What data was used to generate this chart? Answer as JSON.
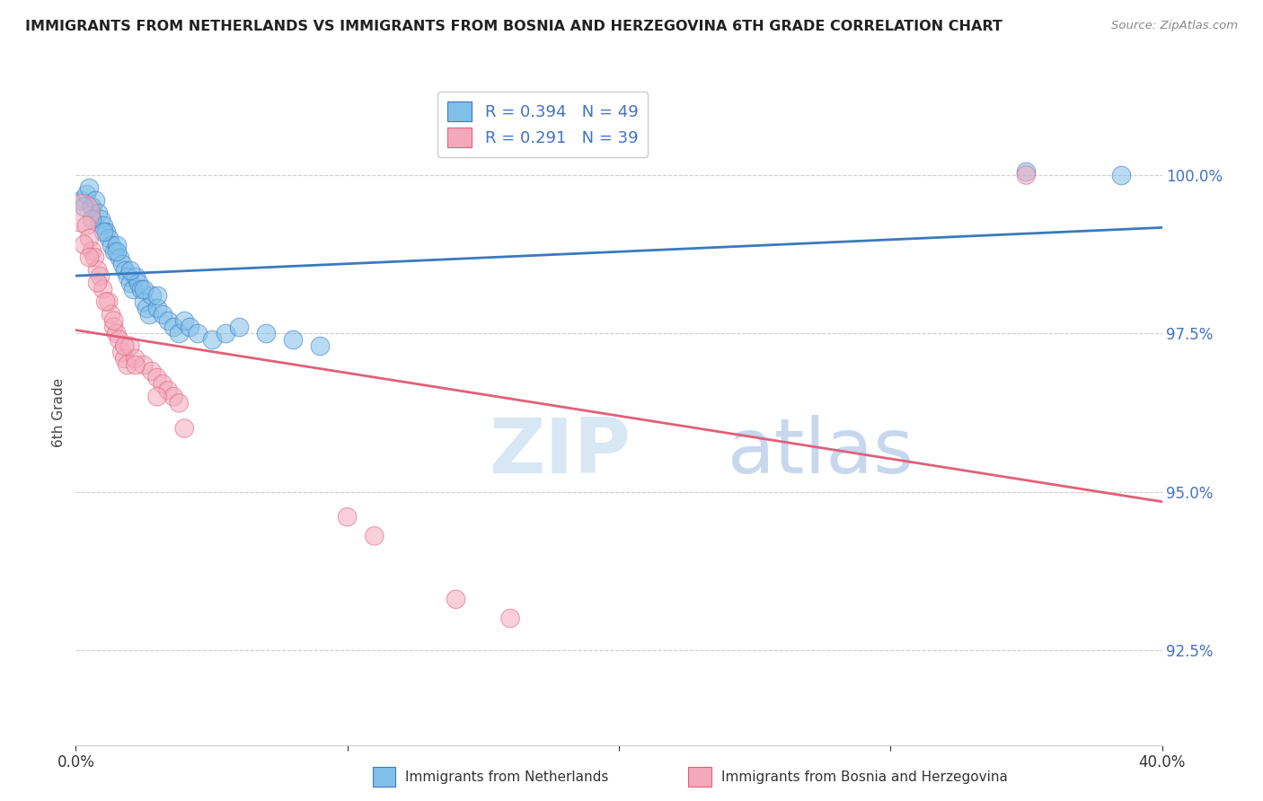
{
  "title": "IMMIGRANTS FROM NETHERLANDS VS IMMIGRANTS FROM BOSNIA AND HERZEGOVINA 6TH GRADE CORRELATION CHART",
  "source": "Source: ZipAtlas.com",
  "ylabel": "6th Grade",
  "y_ticks": [
    92.5,
    95.0,
    97.5,
    100.0
  ],
  "y_tick_labels": [
    "92.5%",
    "95.0%",
    "97.5%",
    "100.0%"
  ],
  "xlim": [
    0.0,
    0.4
  ],
  "ylim": [
    91.0,
    101.5
  ],
  "legend_r_blue": "R = 0.394",
  "legend_n_blue": "N = 49",
  "legend_r_pink": "R = 0.291",
  "legend_n_pink": "N = 39",
  "legend_label_blue": "Immigrants from Netherlands",
  "legend_label_pink": "Immigrants from Bosnia and Herzegovina",
  "blue_color": "#7fbfea",
  "pink_color": "#f4a8bc",
  "trendline_blue_color": "#3a7abf",
  "trendline_pink_color": "#e0607a",
  "blue_x": [
    0.002,
    0.004,
    0.005,
    0.006,
    0.007,
    0.008,
    0.009,
    0.01,
    0.011,
    0.012,
    0.013,
    0.014,
    0.015,
    0.016,
    0.017,
    0.018,
    0.019,
    0.02,
    0.021,
    0.022,
    0.023,
    0.024,
    0.025,
    0.026,
    0.027,
    0.028,
    0.03,
    0.032,
    0.034,
    0.036,
    0.038,
    0.04,
    0.042,
    0.045,
    0.05,
    0.055,
    0.06,
    0.07,
    0.08,
    0.09,
    0.003,
    0.006,
    0.01,
    0.015,
    0.02,
    0.025,
    0.03,
    0.35,
    0.385
  ],
  "blue_y": [
    99.6,
    99.7,
    99.8,
    99.5,
    99.6,
    99.4,
    99.3,
    99.2,
    99.1,
    99.0,
    98.9,
    98.8,
    98.9,
    98.7,
    98.6,
    98.5,
    98.4,
    98.3,
    98.2,
    98.4,
    98.3,
    98.2,
    98.0,
    97.9,
    97.8,
    98.1,
    97.9,
    97.8,
    97.7,
    97.6,
    97.5,
    97.7,
    97.6,
    97.5,
    97.4,
    97.5,
    97.6,
    97.5,
    97.4,
    97.3,
    99.5,
    99.3,
    99.1,
    98.8,
    98.5,
    98.2,
    98.1,
    100.05,
    100.0
  ],
  "pink_x": [
    0.002,
    0.004,
    0.005,
    0.006,
    0.007,
    0.008,
    0.009,
    0.01,
    0.012,
    0.013,
    0.014,
    0.015,
    0.016,
    0.017,
    0.018,
    0.019,
    0.02,
    0.022,
    0.025,
    0.028,
    0.03,
    0.032,
    0.034,
    0.036,
    0.038,
    0.003,
    0.005,
    0.008,
    0.011,
    0.014,
    0.018,
    0.022,
    0.03,
    0.04,
    0.14,
    0.16,
    0.35,
    0.1,
    0.11
  ],
  "pink_y": [
    99.4,
    99.2,
    99.0,
    98.8,
    98.7,
    98.5,
    98.4,
    98.2,
    98.0,
    97.8,
    97.6,
    97.5,
    97.4,
    97.2,
    97.1,
    97.0,
    97.3,
    97.1,
    97.0,
    96.9,
    96.8,
    96.7,
    96.6,
    96.5,
    96.4,
    98.9,
    98.7,
    98.3,
    98.0,
    97.7,
    97.3,
    97.0,
    96.5,
    96.0,
    93.3,
    93.0,
    100.0,
    94.6,
    94.3
  ],
  "pink_large_idx": 0
}
